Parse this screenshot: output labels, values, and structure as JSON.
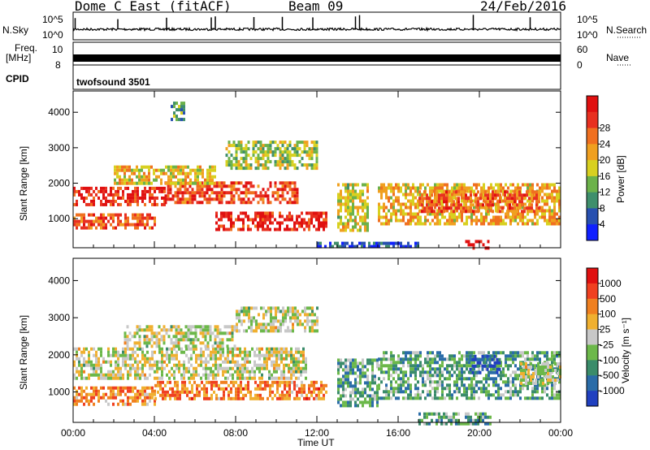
{
  "header": {
    "title": "Dome C East (fitACF)",
    "beam": "Beam 09",
    "date": "24/Feb/2016"
  },
  "strips": {
    "nsky_label": "N.Sky",
    "nsky_ticks": [
      "10^5",
      "10^0"
    ],
    "nsearch_label": "N.Search",
    "nsearch_ticks": [
      "10^5",
      "10^0"
    ],
    "freq_label": "Freq.",
    "freq_unit": "[MHz]",
    "freq_ticks": [
      "10",
      "8"
    ],
    "nave_label": "Nave",
    "nave_ticks": [
      "60",
      "0"
    ],
    "cpid_label": "CPID",
    "cpid_value": "twofsound 3501"
  },
  "chart_data": [
    {
      "type": "heatmap",
      "name": "power",
      "ylabel": "Slant Range [km]",
      "xlabel": "",
      "x_ticks": [
        "00:00",
        "04:00",
        "08:00",
        "12:00",
        "16:00",
        "20:00",
        "00:00"
      ],
      "y_ticks": [
        "1000",
        "2000",
        "3000",
        "4000"
      ],
      "xlim_hours": [
        0,
        24
      ],
      "ylim_km": [
        180,
        4600
      ],
      "colorbar": {
        "label": "Power [dB]",
        "ticks": [
          "4",
          "8",
          "12",
          "16",
          "20",
          "24",
          "28"
        ],
        "colors": [
          "#1020ff",
          "#2850b0",
          "#3f8f6c",
          "#6cb24a",
          "#d8d020",
          "#f0a020",
          "#f07020",
          "#e83020",
          "#e01010"
        ]
      },
      "regions": [
        {
          "t0": 0.0,
          "t1": 4.5,
          "r0": 1400,
          "r1": 1900,
          "level": 0.85
        },
        {
          "t0": 4.5,
          "t1": 11.0,
          "r0": 1500,
          "r1": 2050,
          "level": 0.8
        },
        {
          "t0": 0.0,
          "t1": 4.0,
          "r0": 700,
          "r1": 1150,
          "level": 0.75
        },
        {
          "t0": 7.0,
          "t1": 12.5,
          "r0": 700,
          "r1": 1200,
          "level": 0.9
        },
        {
          "t0": 2.0,
          "t1": 7.0,
          "r0": 2000,
          "r1": 2500,
          "level": 0.55
        },
        {
          "t0": 7.5,
          "t1": 12.0,
          "r0": 2400,
          "r1": 3200,
          "level": 0.45
        },
        {
          "t0": 13.0,
          "t1": 14.5,
          "r0": 700,
          "r1": 2000,
          "level": 0.5
        },
        {
          "t0": 15.0,
          "t1": 24.0,
          "r0": 900,
          "r1": 2000,
          "level": 0.6
        },
        {
          "t0": 17.0,
          "t1": 23.0,
          "r0": 1200,
          "r1": 1800,
          "level": 0.75
        },
        {
          "t0": 19.3,
          "t1": 20.5,
          "r0": 200,
          "r1": 400,
          "level": 0.95
        },
        {
          "t0": 12.0,
          "t1": 17.0,
          "r0": 200,
          "r1": 350,
          "level": 0.15
        },
        {
          "t0": 4.8,
          "t1": 5.5,
          "r0": 3800,
          "r1": 4300,
          "level": 0.35
        }
      ]
    },
    {
      "type": "heatmap",
      "name": "velocity",
      "ylabel": "Slant Range [km]",
      "xlabel": "Time UT",
      "x_ticks": [
        "00:00",
        "04:00",
        "08:00",
        "12:00",
        "16:00",
        "20:00",
        "00:00"
      ],
      "y_ticks": [
        "1000",
        "2000",
        "3000",
        "4000"
      ],
      "xlim_hours": [
        0,
        24
      ],
      "ylim_km": [
        180,
        4600
      ],
      "colorbar": {
        "label": "Velocity [m s⁻¹]",
        "ticks": [
          "1000",
          "500",
          "100",
          "25",
          "-25",
          "-100",
          "-500",
          "-1000"
        ],
        "colors": [
          "#2040c0",
          "#2a6ca8",
          "#3a8c6a",
          "#6cb84a",
          "#c8c8c8",
          "#f0b030",
          "#f08020",
          "#f04020",
          "#e01010"
        ]
      },
      "regions": [
        {
          "t0": 0.0,
          "t1": 11.5,
          "r0": 1400,
          "r1": 2200,
          "level": 0.5
        },
        {
          "t0": 2.5,
          "t1": 8.0,
          "r0": 2200,
          "r1": 2800,
          "level": 0.5
        },
        {
          "t0": 8.0,
          "t1": 12.0,
          "r0": 2600,
          "r1": 3300,
          "level": 0.5
        },
        {
          "t0": 0.0,
          "t1": 4.0,
          "r0": 700,
          "r1": 1150,
          "level": 0.7
        },
        {
          "t0": 4.0,
          "t1": 12.5,
          "r0": 800,
          "r1": 1300,
          "level": 0.72
        },
        {
          "t0": 13.0,
          "t1": 15.0,
          "r0": 600,
          "r1": 1900,
          "level": 0.32
        },
        {
          "t0": 15.0,
          "t1": 24.0,
          "r0": 800,
          "r1": 2100,
          "level": 0.33
        },
        {
          "t0": 19.5,
          "t1": 21.0,
          "r0": 1500,
          "r1": 2000,
          "level": 0.1
        },
        {
          "t0": 22.0,
          "t1": 24.0,
          "r0": 1200,
          "r1": 1800,
          "level": 0.5
        },
        {
          "t0": 17.0,
          "t1": 20.5,
          "r0": 180,
          "r1": 450,
          "level": 0.35
        }
      ]
    }
  ],
  "nsky_spikes": [
    0.1,
    2.2,
    4.6,
    6.8,
    7.0,
    8.9,
    10.3,
    11.8,
    13.9,
    14.1,
    19.7,
    22.5
  ],
  "freq_level_mhz": 10
}
